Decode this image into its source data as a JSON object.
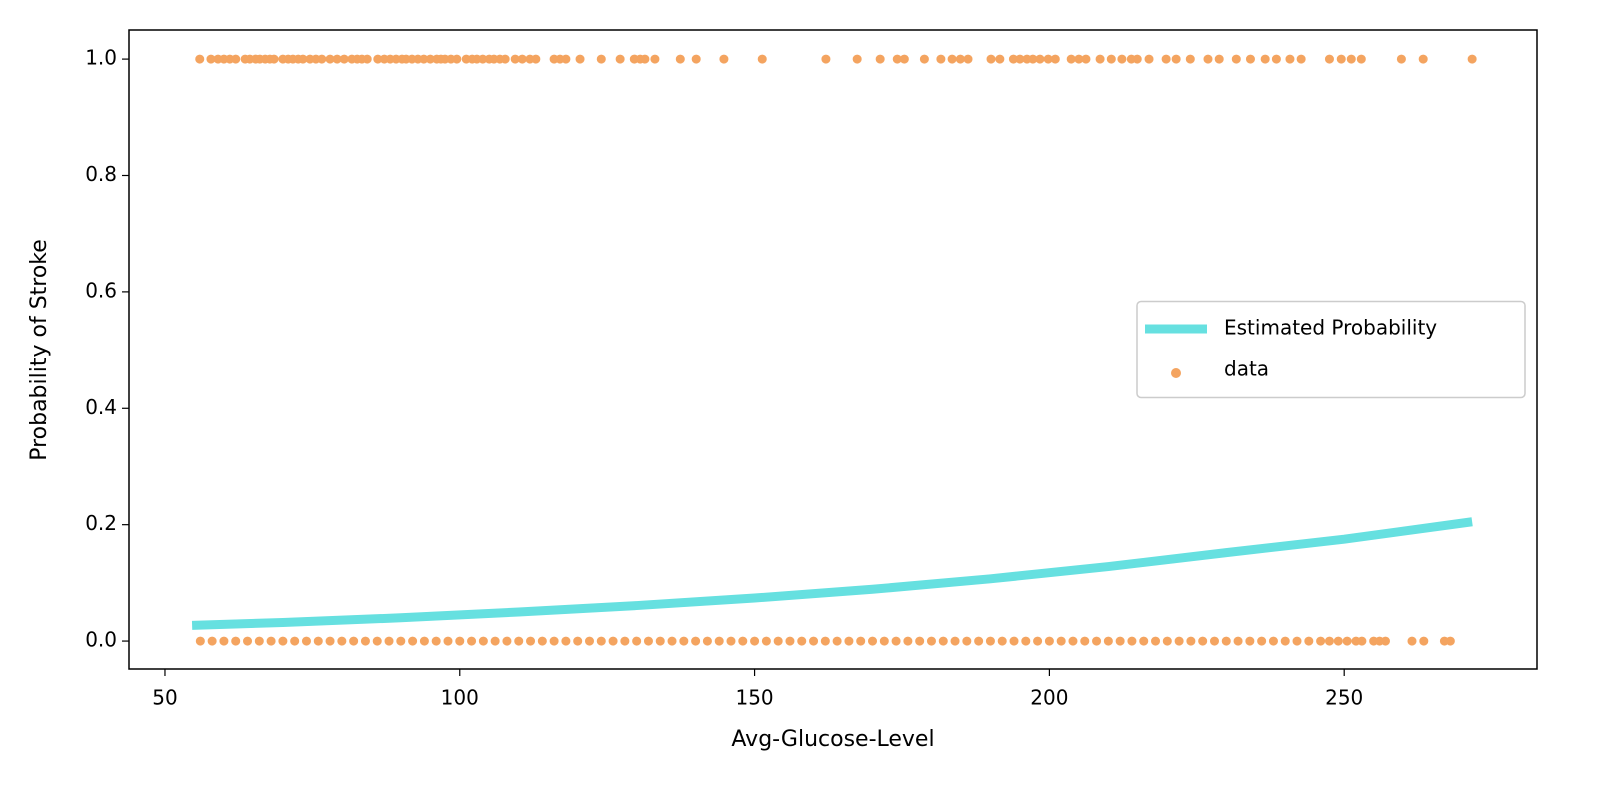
{
  "chart_data": {
    "type": "scatter",
    "xlabel": "Avg-Glucose-Level",
    "ylabel": "Probability of Stroke",
    "xlim": [
      43.9,
      282.7
    ],
    "ylim": [
      -0.048,
      1.05
    ],
    "xticks": [
      50,
      100,
      150,
      200,
      250
    ],
    "yticks": [
      {
        "value": 0,
        "label": "0.0"
      },
      0.2,
      0.4,
      0.6,
      0.8,
      {
        "value": 1,
        "label": "1.0"
      }
    ],
    "grid": false,
    "legend": "center right",
    "series": [
      {
        "name": "Estimated Probability",
        "type": "line",
        "color": "#66e0e0",
        "x": [
          54.6,
          70,
          90,
          110,
          130,
          150,
          170,
          190,
          210,
          230,
          250,
          271.7
        ],
        "values": [
          0.027,
          0.032,
          0.04,
          0.05,
          0.061,
          0.074,
          0.089,
          0.107,
          0.128,
          0.152,
          0.175,
          0.205
        ]
      },
      {
        "name": "data",
        "type": "scatter",
        "color": "#f4a460",
        "x": [
          55.9,
          57.8,
          59.0,
          60.0,
          61.0,
          62.0,
          63.6,
          64.4,
          65.4,
          66.1,
          67.0,
          67.8,
          68.5,
          70.0,
          70.9,
          71.7,
          72.6,
          73.4,
          74.6,
          75.6,
          76.6,
          78.0,
          79.2,
          80.4,
          81.7,
          82.6,
          83.4,
          84.3,
          86.1,
          87.2,
          88.2,
          89.2,
          90.2,
          90.9,
          91.9,
          92.9,
          93.9,
          95.0,
          96.1,
          96.8,
          97.5,
          98.5,
          99.5,
          101.1,
          102.1,
          102.9,
          103.9,
          105.0,
          105.8,
          106.8,
          107.7,
          109.4,
          110.6,
          111.9,
          112.9,
          116.0,
          117.0,
          118.0,
          120.4,
          124.0,
          127.2,
          129.6,
          130.6,
          131.4,
          133.1,
          137.4,
          140.1,
          144.8,
          151.3,
          162.1,
          167.4,
          171.3,
          174.2,
          175.4,
          178.8,
          181.6,
          183.5,
          184.9,
          186.2,
          190.1,
          191.6,
          193.9,
          195.0,
          196.2,
          197.2,
          198.4,
          199.8,
          201.0,
          203.7,
          205.0,
          206.2,
          208.6,
          210.5,
          212.3,
          213.9,
          214.9,
          216.9,
          219.8,
          221.5,
          223.9,
          226.9,
          228.8,
          231.7,
          234.1,
          236.6,
          238.5,
          240.8,
          242.7,
          247.5,
          249.5,
          251.2,
          252.9,
          259.7,
          263.4,
          271.7,
          56,
          58,
          60,
          62,
          64,
          66,
          68,
          70,
          72,
          74,
          76,
          78,
          80,
          82,
          84,
          86,
          88,
          90,
          92,
          94,
          96,
          98,
          100,
          102,
          104,
          106,
          108,
          110,
          112,
          114,
          116,
          118,
          120,
          122,
          124,
          126,
          128,
          130,
          132,
          134,
          136,
          138,
          140,
          142,
          144,
          146,
          148,
          150,
          152,
          154,
          156,
          158,
          160,
          162,
          164,
          166,
          168,
          170,
          172,
          174,
          176,
          178,
          180,
          182,
          184,
          186,
          188,
          190,
          192,
          194,
          196,
          198,
          200,
          202,
          204,
          206,
          208,
          210,
          212,
          214,
          216,
          218,
          220,
          222,
          224,
          226,
          228,
          230,
          232,
          234,
          236,
          238,
          240,
          242,
          244,
          246,
          247.5,
          249,
          250.5,
          252,
          253,
          255,
          256,
          257,
          261.5,
          263.5,
          267,
          268
        ],
        "values": [
          1,
          1,
          1,
          1,
          1,
          1,
          1,
          1,
          1,
          1,
          1,
          1,
          1,
          1,
          1,
          1,
          1,
          1,
          1,
          1,
          1,
          1,
          1,
          1,
          1,
          1,
          1,
          1,
          1,
          1,
          1,
          1,
          1,
          1,
          1,
          1,
          1,
          1,
          1,
          1,
          1,
          1,
          1,
          1,
          1,
          1,
          1,
          1,
          1,
          1,
          1,
          1,
          1,
          1,
          1,
          1,
          1,
          1,
          1,
          1,
          1,
          1,
          1,
          1,
          1,
          1,
          1,
          1,
          1,
          1,
          1,
          1,
          1,
          1,
          1,
          1,
          1,
          1,
          1,
          1,
          1,
          1,
          1,
          1,
          1,
          1,
          1,
          1,
          1,
          1,
          1,
          1,
          1,
          1,
          1,
          1,
          1,
          1,
          1,
          1,
          1,
          1,
          1,
          1,
          1,
          1,
          1,
          1,
          1,
          1,
          1,
          1,
          1,
          1,
          1,
          0,
          0,
          0,
          0,
          0,
          0,
          0,
          0,
          0,
          0,
          0,
          0,
          0,
          0,
          0,
          0,
          0,
          0,
          0,
          0,
          0,
          0,
          0,
          0,
          0,
          0,
          0,
          0,
          0,
          0,
          0,
          0,
          0,
          0,
          0,
          0,
          0,
          0,
          0,
          0,
          0,
          0,
          0,
          0,
          0,
          0,
          0,
          0,
          0,
          0,
          0,
          0,
          0,
          0,
          0,
          0,
          0,
          0,
          0,
          0,
          0,
          0,
          0,
          0,
          0,
          0,
          0,
          0,
          0,
          0,
          0,
          0,
          0,
          0,
          0,
          0,
          0,
          0,
          0,
          0,
          0,
          0,
          0,
          0,
          0,
          0,
          0,
          0,
          0,
          0,
          0,
          0,
          0,
          0,
          0,
          0,
          0,
          0,
          0,
          0,
          0,
          0,
          0,
          0,
          0,
          0,
          0,
          0
        ]
      }
    ]
  }
}
